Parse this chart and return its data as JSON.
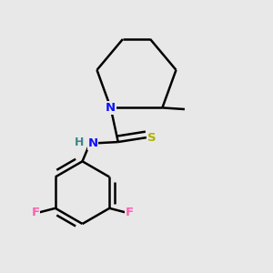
{
  "background_color": "#e8e8e8",
  "atom_colors": {
    "N_ring": "#1010ff",
    "N_amide": "#1010ff",
    "H": "#3a8888",
    "S": "#b0b000",
    "F": "#ff60b0",
    "C": "#000000"
  },
  "bond_color": "#000000",
  "bond_width": 1.8,
  "figsize": [
    3.0,
    3.0
  ],
  "dpi": 100
}
